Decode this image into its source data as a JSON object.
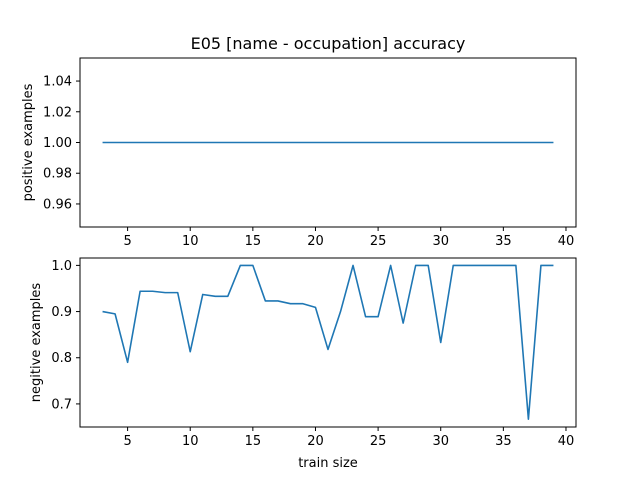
{
  "chart_data": [
    {
      "type": "line",
      "title": "E05 [name - occupation] accuracy",
      "xlabel": "",
      "ylabel": "positive examples",
      "xlim": [
        1.2,
        40.8
      ],
      "ylim": [
        0.945,
        1.055
      ],
      "xticks": [
        5,
        10,
        15,
        20,
        25,
        30,
        35,
        40
      ],
      "yticks": [
        0.96,
        0.98,
        1.0,
        1.02,
        1.04
      ],
      "ytick_labels": [
        "0.96",
        "0.98",
        "1.00",
        "1.02",
        "1.04"
      ],
      "grid": false,
      "color": "#1f77b4",
      "series": [
        {
          "x": [
            3,
            4,
            5,
            6,
            7,
            8,
            9,
            10,
            11,
            12,
            13,
            14,
            15,
            16,
            17,
            18,
            19,
            20,
            21,
            22,
            23,
            24,
            25,
            26,
            27,
            28,
            29,
            30,
            31,
            32,
            33,
            34,
            35,
            36,
            37,
            38,
            39
          ],
          "values": [
            1,
            1,
            1,
            1,
            1,
            1,
            1,
            1,
            1,
            1,
            1,
            1,
            1,
            1,
            1,
            1,
            1,
            1,
            1,
            1,
            1,
            1,
            1,
            1,
            1,
            1,
            1,
            1,
            1,
            1,
            1,
            1,
            1,
            1,
            1,
            1,
            1
          ]
        }
      ]
    },
    {
      "type": "line",
      "title": "",
      "xlabel": "train size",
      "ylabel": "negitive examples",
      "xlim": [
        1.2,
        40.8
      ],
      "ylim": [
        0.65,
        1.016
      ],
      "xticks": [
        5,
        10,
        15,
        20,
        25,
        30,
        35,
        40
      ],
      "yticks": [
        0.7,
        0.8,
        0.9,
        1.0
      ],
      "ytick_labels": [
        "0.7",
        "0.8",
        "0.9",
        "1.0"
      ],
      "grid": false,
      "color": "#1f77b4",
      "series": [
        {
          "x": [
            3,
            4,
            5,
            6,
            7,
            8,
            9,
            10,
            11,
            12,
            13,
            14,
            15,
            16,
            17,
            18,
            19,
            20,
            21,
            22,
            23,
            24,
            25,
            26,
            27,
            28,
            29,
            30,
            31,
            32,
            33,
            34,
            35,
            36,
            37,
            38,
            39
          ],
          "values": [
            0.9,
            0.895,
            0.79,
            0.944,
            0.944,
            0.941,
            0.941,
            0.813,
            0.937,
            0.933,
            0.933,
            1.0,
            1.0,
            0.923,
            0.923,
            0.917,
            0.917,
            0.909,
            0.818,
            0.9,
            1.0,
            0.889,
            0.889,
            1.0,
            0.875,
            1.0,
            1.0,
            0.833,
            1.0,
            1.0,
            1.0,
            1.0,
            1.0,
            1.0,
            0.667,
            1.0,
            1.0
          ]
        }
      ]
    }
  ]
}
